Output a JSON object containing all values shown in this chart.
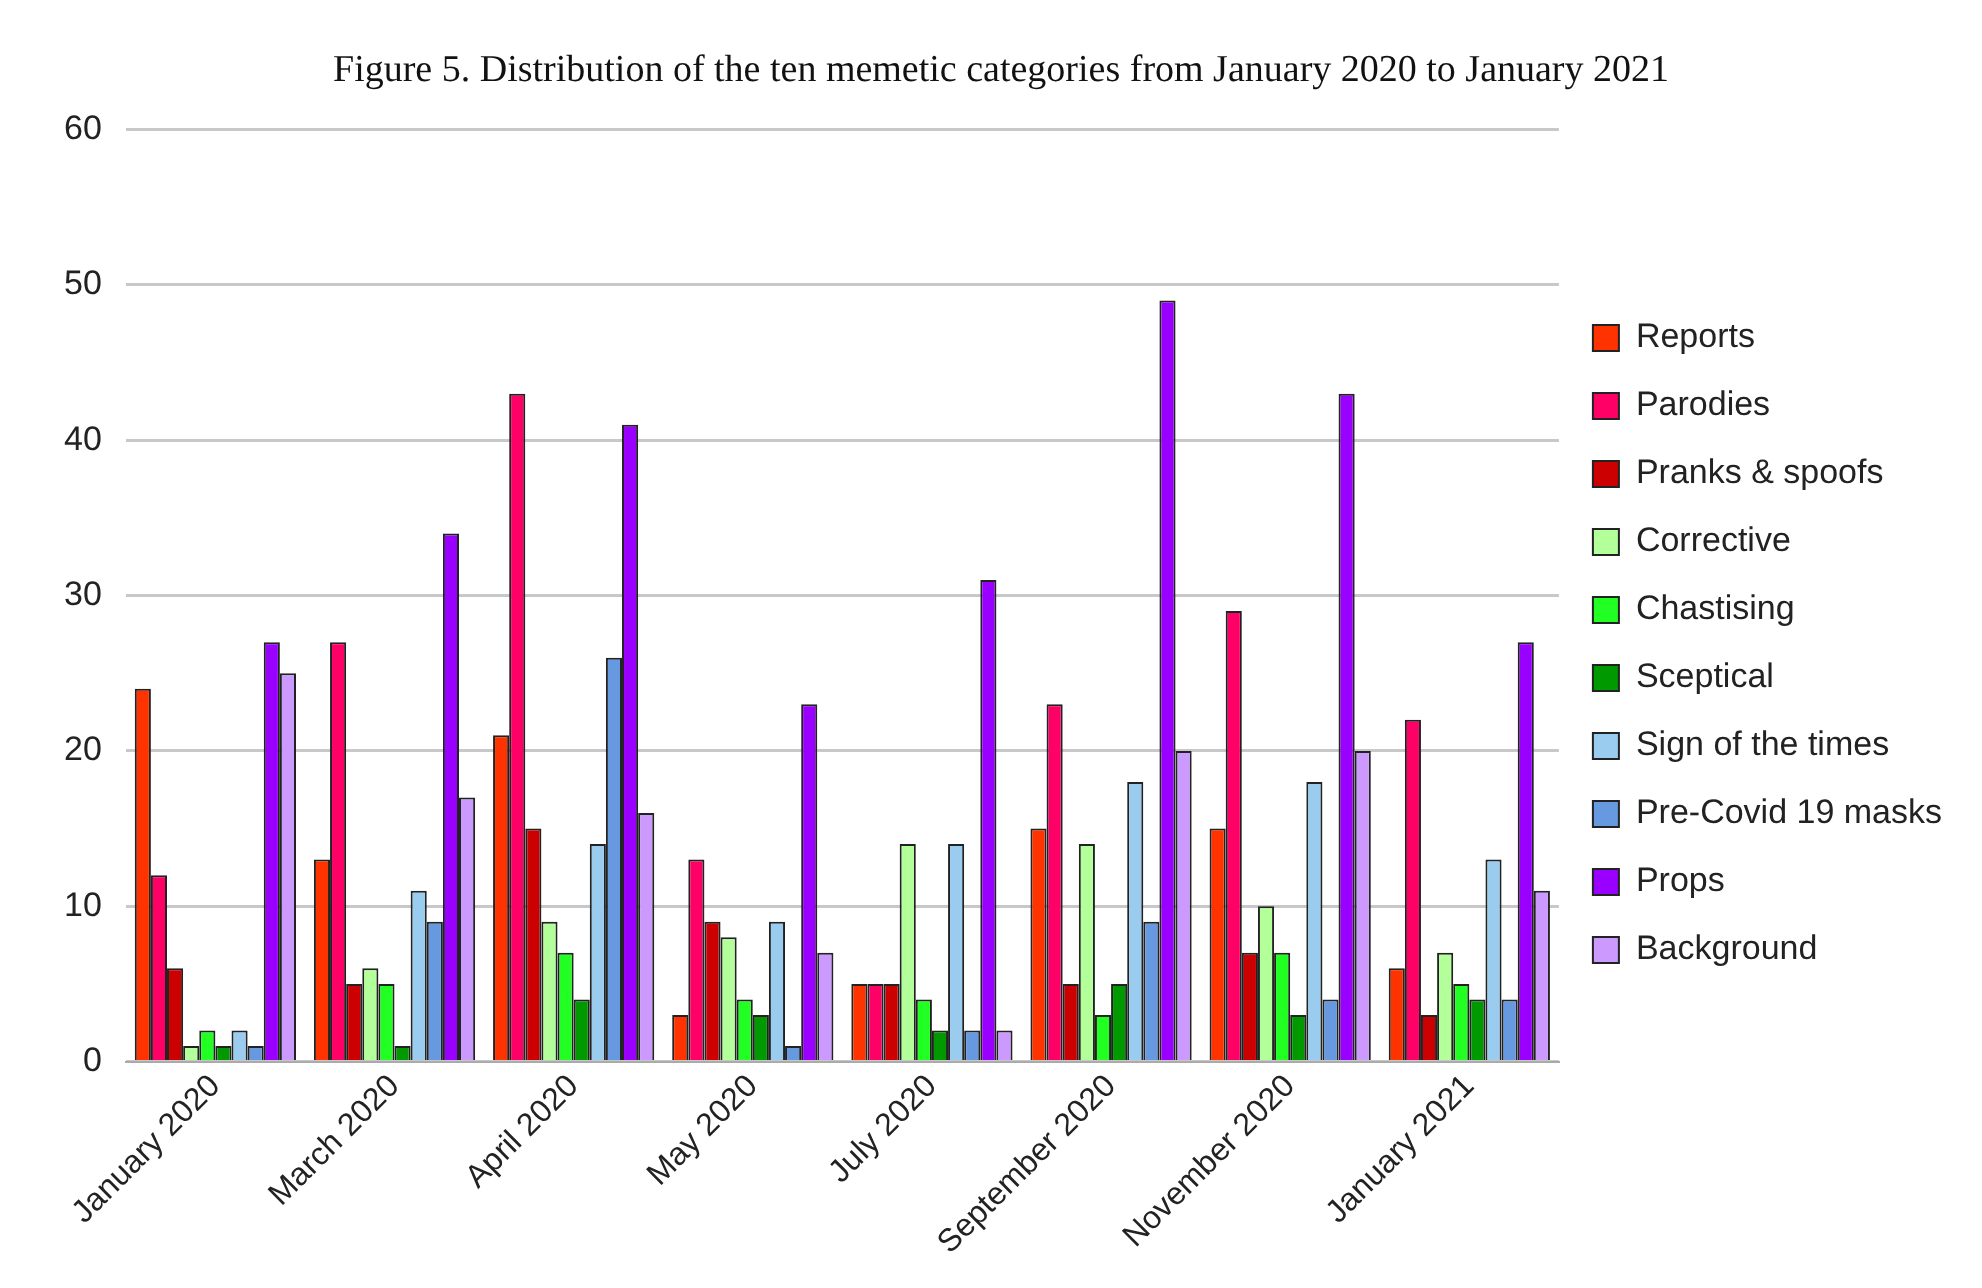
{
  "chart_data": {
    "type": "bar",
    "title": "Figure 5. Distribution of the ten memetic categories from January 2020 to January 2021",
    "categories": [
      "January 2020",
      "March 2020",
      "April 2020",
      "May 2020",
      "July 2020",
      "September 2020",
      "November 2020",
      "January 2021"
    ],
    "series": [
      {
        "name": "Reports",
        "color": "#ff3300",
        "values": [
          24,
          13,
          21,
          3,
          5,
          15,
          15,
          6
        ]
      },
      {
        "name": "Parodies",
        "color": "#ff0066",
        "values": [
          12,
          27,
          43,
          13,
          5,
          23,
          29,
          22
        ]
      },
      {
        "name": "Pranks & spoofs",
        "color": "#cc0000",
        "values": [
          6,
          5,
          15,
          9,
          5,
          5,
          7,
          3
        ]
      },
      {
        "name": "Corrective",
        "color": "#b3ff99",
        "values": [
          1,
          6,
          9,
          8,
          14,
          14,
          10,
          7
        ]
      },
      {
        "name": "Chastising",
        "color": "#22ff22",
        "values": [
          2,
          5,
          7,
          4,
          4,
          3,
          7,
          5
        ]
      },
      {
        "name": "Sceptical",
        "color": "#009900",
        "values": [
          1,
          1,
          4,
          3,
          2,
          5,
          3,
          4
        ]
      },
      {
        "name": "Sign of the times",
        "color": "#99ccee",
        "values": [
          2,
          11,
          14,
          9,
          14,
          18,
          18,
          13
        ]
      },
      {
        "name": "Pre-Covid 19 masks",
        "color": "#6699e0",
        "values": [
          1,
          9,
          26,
          1,
          2,
          9,
          4,
          4
        ]
      },
      {
        "name": "Props",
        "color": "#9900ff",
        "values": [
          27,
          34,
          41,
          23,
          31,
          49,
          43,
          27
        ]
      },
      {
        "name": "Background",
        "color": "#cc99ff",
        "values": [
          25,
          17,
          16,
          7,
          2,
          20,
          20,
          11
        ]
      }
    ],
    "ylim": [
      0,
      60
    ],
    "yticks": [
      0,
      10,
      20,
      30,
      40,
      50,
      60
    ],
    "grid": "y",
    "legend": "right"
  }
}
